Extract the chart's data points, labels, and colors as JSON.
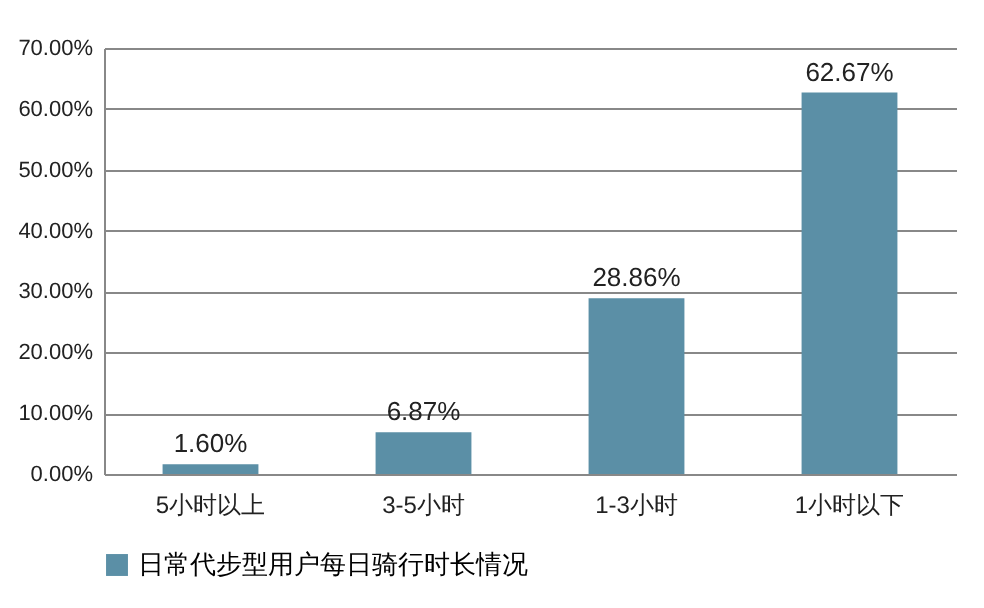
{
  "chart_data": {
    "type": "bar",
    "categories": [
      "5小时以上",
      "3-5小时",
      "1-3小时",
      "1小时以下"
    ],
    "series": [
      {
        "name": "日常代步型用户每日骑行时长情况",
        "color": "#5b8fa6",
        "values": [
          1.6,
          6.87,
          28.86,
          62.67
        ],
        "value_labels": [
          "1.60%",
          "6.87%",
          "28.86%",
          "62.67%"
        ]
      }
    ],
    "ylim": [
      0,
      70
    ],
    "yticks": [
      {
        "value": 0,
        "label": "0.00%"
      },
      {
        "value": 10,
        "label": "10.00%"
      },
      {
        "value": 20,
        "label": "20.00%"
      },
      {
        "value": 30,
        "label": "30.00%"
      },
      {
        "value": 40,
        "label": "40.00%"
      },
      {
        "value": 50,
        "label": "50.00%"
      },
      {
        "value": 60,
        "label": "60.00%"
      },
      {
        "value": 70,
        "label": "70.00%"
      }
    ],
    "grid": "y",
    "legend": "bottom"
  }
}
